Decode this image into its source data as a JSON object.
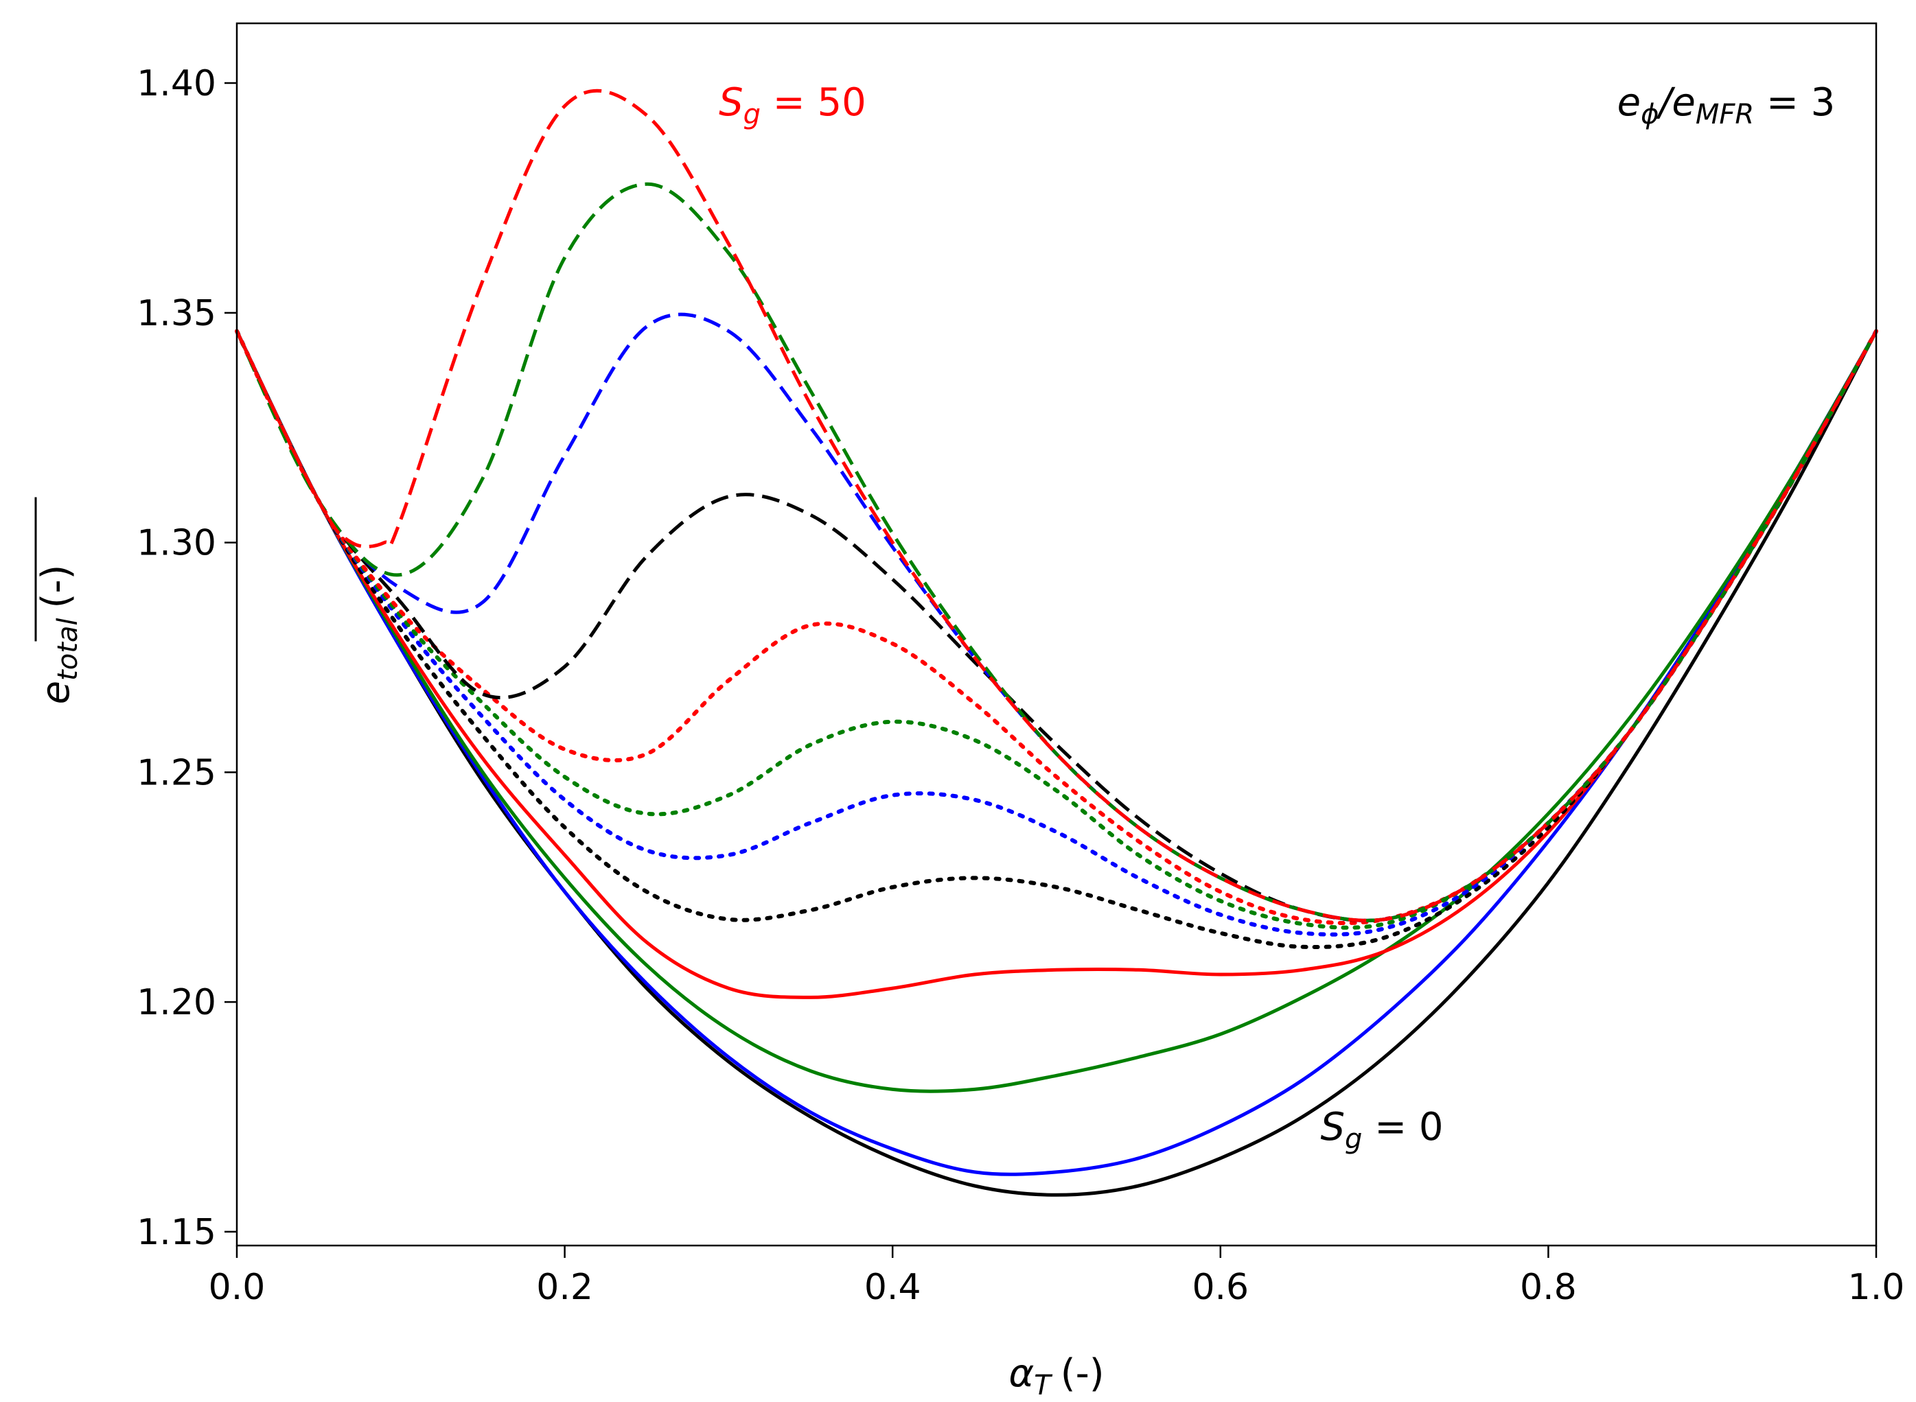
{
  "chart_data": {
    "type": "line",
    "title": "",
    "xlabel_symbol": "α",
    "xlabel_subscript": "T",
    "xlabel_unit": "(-)",
    "ylabel_symbol": "e",
    "ylabel_subscript": "total",
    "ylabel_unit": "(-)",
    "xlim": [
      0.0,
      1.0
    ],
    "ylim": [
      1.147,
      1.413
    ],
    "x_ticks": [
      0.0,
      0.2,
      0.4,
      0.6,
      0.8,
      1.0
    ],
    "x_tick_labels": [
      "0.0",
      "0.2",
      "0.4",
      "0.6",
      "0.8",
      "1.0"
    ],
    "y_ticks": [
      1.15,
      1.2,
      1.25,
      1.3,
      1.35,
      1.4
    ],
    "y_tick_labels": [
      "1.15",
      "1.20",
      "1.25",
      "1.30",
      "1.35",
      "1.40"
    ],
    "grid": false,
    "annotations": [
      {
        "name": "sg-50-label",
        "symbol": "S",
        "subscript": "g",
        "rest": " = 50",
        "color": "#ff0000",
        "x": 0.294,
        "y": 1.393,
        "anchor": "start"
      },
      {
        "name": "sg-0-label",
        "symbol": "S",
        "subscript": "g",
        "rest": " = 0",
        "color": "#000000",
        "x": 0.661,
        "y": 1.17,
        "anchor": "start"
      },
      {
        "name": "e-ratio-label",
        "symbol": "e",
        "subscript": "ϕ",
        "mid": "/e",
        "subscript2": "MFR",
        "rest": " = 3",
        "color": "#000000",
        "x": 0.975,
        "y": 1.393,
        "anchor": "end"
      }
    ],
    "series": [
      {
        "name": "solid-black (Sg=0)",
        "color": "#000000",
        "style": "solid",
        "x": [
          0.0,
          0.05,
          0.1,
          0.15,
          0.2,
          0.25,
          0.3,
          0.35,
          0.4,
          0.45,
          0.5,
          0.55,
          0.6,
          0.65,
          0.7,
          0.75,
          0.8,
          0.85,
          0.9,
          0.95,
          1.0
        ],
        "y": [
          1.346,
          1.309,
          1.277,
          1.248,
          1.224,
          1.203,
          1.187,
          1.175,
          1.166,
          1.16,
          1.158,
          1.16,
          1.166,
          1.175,
          1.188,
          1.205,
          1.226,
          1.252,
          1.281,
          1.312,
          1.346
        ]
      },
      {
        "name": "solid-blue",
        "color": "#0000ff",
        "style": "solid",
        "x": [
          0.0,
          0.05,
          0.1,
          0.15,
          0.2,
          0.25,
          0.3,
          0.35,
          0.4,
          0.45,
          0.5,
          0.55,
          0.6,
          0.65,
          0.7,
          0.75,
          0.8,
          0.85,
          0.9,
          0.95,
          1.0
        ],
        "y": [
          1.346,
          1.309,
          1.277,
          1.249,
          1.224,
          1.204,
          1.188,
          1.176,
          1.168,
          1.163,
          1.163,
          1.166,
          1.173,
          1.183,
          1.197,
          1.214,
          1.235,
          1.259,
          1.286,
          1.315,
          1.346
        ]
      },
      {
        "name": "solid-green",
        "color": "#008000",
        "style": "solid",
        "x": [
          0.0,
          0.05,
          0.1,
          0.15,
          0.2,
          0.25,
          0.3,
          0.35,
          0.4,
          0.45,
          0.5,
          0.55,
          0.6,
          0.65,
          0.7,
          0.75,
          0.8,
          0.85,
          0.9,
          0.95,
          1.0
        ],
        "y": [
          1.346,
          1.309,
          1.278,
          1.25,
          1.227,
          1.208,
          1.194,
          1.185,
          1.181,
          1.181,
          1.184,
          1.188,
          1.193,
          1.201,
          1.211,
          1.224,
          1.241,
          1.262,
          1.287,
          1.315,
          1.346
        ]
      },
      {
        "name": "solid-red",
        "color": "#ff0000",
        "style": "solid",
        "x": [
          0.0,
          0.05,
          0.1,
          0.15,
          0.2,
          0.25,
          0.3,
          0.35,
          0.4,
          0.45,
          0.5,
          0.55,
          0.6,
          0.65,
          0.7,
          0.75,
          0.8,
          0.85,
          0.9,
          0.95,
          1.0
        ],
        "y": [
          1.346,
          1.309,
          1.279,
          1.253,
          1.232,
          1.213,
          1.203,
          1.201,
          1.203,
          1.206,
          1.207,
          1.207,
          1.206,
          1.207,
          1.211,
          1.221,
          1.237,
          1.259,
          1.285,
          1.314,
          1.346
        ]
      },
      {
        "name": "dotted-black",
        "color": "#000000",
        "style": "dotted",
        "x": [
          0.0,
          0.05,
          0.1,
          0.15,
          0.2,
          0.25,
          0.3,
          0.35,
          0.4,
          0.45,
          0.5,
          0.55,
          0.6,
          0.65,
          0.7,
          0.75,
          0.8,
          0.85,
          0.9,
          0.95,
          1.0
        ],
        "y": [
          1.346,
          1.309,
          1.281,
          1.258,
          1.238,
          1.224,
          1.218,
          1.22,
          1.225,
          1.227,
          1.225,
          1.22,
          1.215,
          1.212,
          1.214,
          1.223,
          1.238,
          1.259,
          1.285,
          1.314,
          1.346
        ]
      },
      {
        "name": "dotted-blue",
        "color": "#0000ff",
        "style": "dotted",
        "x": [
          0.0,
          0.05,
          0.1,
          0.15,
          0.2,
          0.25,
          0.3,
          0.35,
          0.4,
          0.45,
          0.5,
          0.55,
          0.6,
          0.65,
          0.7,
          0.75,
          0.8,
          0.85,
          0.9,
          0.95,
          1.0
        ],
        "y": [
          1.346,
          1.309,
          1.283,
          1.262,
          1.244,
          1.233,
          1.232,
          1.239,
          1.245,
          1.244,
          1.237,
          1.227,
          1.219,
          1.215,
          1.216,
          1.224,
          1.239,
          1.259,
          1.285,
          1.314,
          1.346
        ]
      },
      {
        "name": "dotted-green",
        "color": "#008000",
        "style": "dotted",
        "x": [
          0.0,
          0.05,
          0.1,
          0.15,
          0.2,
          0.25,
          0.3,
          0.35,
          0.4,
          0.45,
          0.5,
          0.55,
          0.6,
          0.65,
          0.7,
          0.75,
          0.8,
          0.85,
          0.9,
          0.95,
          1.0
        ],
        "y": [
          1.346,
          1.309,
          1.284,
          1.265,
          1.249,
          1.241,
          1.245,
          1.256,
          1.261,
          1.257,
          1.246,
          1.232,
          1.222,
          1.217,
          1.217,
          1.225,
          1.239,
          1.259,
          1.285,
          1.314,
          1.346
        ]
      },
      {
        "name": "dotted-red",
        "color": "#ff0000",
        "style": "dotted",
        "x": [
          0.0,
          0.05,
          0.1,
          0.15,
          0.2,
          0.25,
          0.3,
          0.35,
          0.4,
          0.45,
          0.5,
          0.55,
          0.6,
          0.65,
          0.7,
          0.75,
          0.8,
          0.85,
          0.9,
          0.95,
          1.0
        ],
        "y": [
          1.346,
          1.309,
          1.285,
          1.268,
          1.255,
          1.254,
          1.27,
          1.282,
          1.278,
          1.265,
          1.249,
          1.235,
          1.224,
          1.218,
          1.218,
          1.225,
          1.239,
          1.259,
          1.285,
          1.314,
          1.346
        ]
      },
      {
        "name": "dashed-black",
        "color": "#000000",
        "style": "dashed",
        "x": [
          0.0,
          0.05,
          0.1,
          0.15,
          0.2,
          0.25,
          0.3,
          0.35,
          0.4,
          0.45,
          0.5,
          0.55,
          0.6,
          0.65,
          0.7,
          0.75,
          0.8,
          0.85,
          0.9,
          0.95,
          1.0
        ],
        "y": [
          1.346,
          1.309,
          1.287,
          1.267,
          1.273,
          1.297,
          1.31,
          1.306,
          1.292,
          1.274,
          1.256,
          1.24,
          1.228,
          1.22,
          1.218,
          1.225,
          1.239,
          1.259,
          1.285,
          1.314,
          1.346
        ]
      },
      {
        "name": "dashed-blue",
        "color": "#0000ff",
        "style": "dashed",
        "x": [
          0.0,
          0.05,
          0.1,
          0.15,
          0.2,
          0.25,
          0.3,
          0.35,
          0.4,
          0.45,
          0.5,
          0.55,
          0.6,
          0.65,
          0.7,
          0.75,
          0.8,
          0.85,
          0.9,
          0.95,
          1.0
        ],
        "y": [
          1.346,
          1.309,
          1.29,
          1.287,
          1.319,
          1.347,
          1.346,
          1.325,
          1.299,
          1.275,
          1.254,
          1.238,
          1.227,
          1.22,
          1.218,
          1.225,
          1.239,
          1.259,
          1.285,
          1.314,
          1.346
        ]
      },
      {
        "name": "dashed-green",
        "color": "#008000",
        "style": "dashed",
        "x": [
          0.0,
          0.05,
          0.1,
          0.15,
          0.2,
          0.25,
          0.3,
          0.35,
          0.4,
          0.45,
          0.5,
          0.55,
          0.6,
          0.65,
          0.7,
          0.75,
          0.8,
          0.85,
          0.9,
          0.95,
          1.0
        ],
        "y": [
          1.346,
          1.309,
          1.293,
          1.314,
          1.362,
          1.378,
          1.363,
          1.333,
          1.302,
          1.276,
          1.254,
          1.238,
          1.227,
          1.22,
          1.218,
          1.225,
          1.239,
          1.259,
          1.285,
          1.314,
          1.346
        ]
      },
      {
        "name": "dashed-red (Sg=50)",
        "color": "#ff0000",
        "style": "dashed",
        "x": [
          0.0,
          0.05,
          0.07,
          0.09,
          0.1,
          0.15,
          0.2,
          0.25,
          0.3,
          0.35,
          0.4,
          0.45,
          0.5,
          0.55,
          0.6,
          0.65,
          0.7,
          0.75,
          0.8,
          0.85,
          0.9,
          0.95,
          1.0
        ],
        "y": [
          1.346,
          1.309,
          1.3,
          1.3,
          1.305,
          1.357,
          1.395,
          1.393,
          1.365,
          1.33,
          1.3,
          1.275,
          1.254,
          1.238,
          1.227,
          1.22,
          1.218,
          1.225,
          1.239,
          1.259,
          1.285,
          1.314,
          1.346
        ]
      }
    ]
  }
}
